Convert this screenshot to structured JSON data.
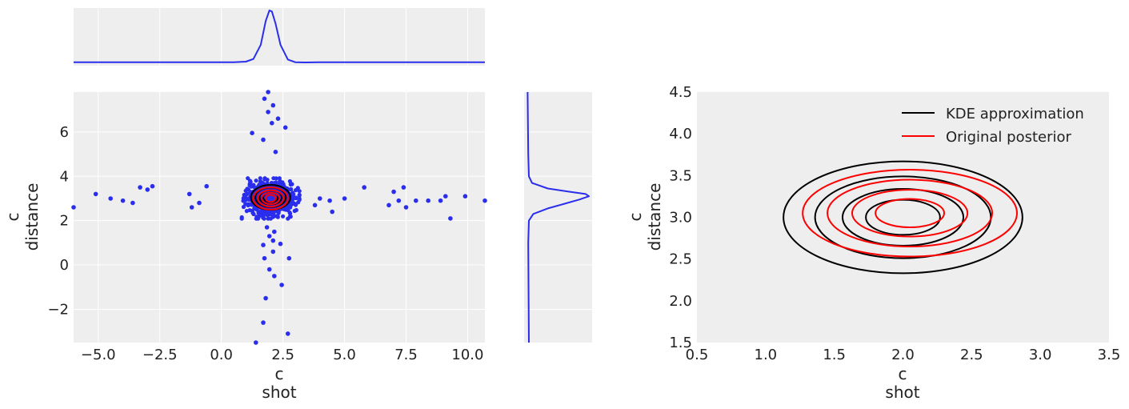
{
  "colors": {
    "background": "#eeeeee",
    "grid": "#ffffff",
    "samples": "#2a2eec",
    "kde": "#000000",
    "posterior": "#ff0000",
    "text": "#222222"
  },
  "chart_data": [
    {
      "id": "top-marginal",
      "type": "line",
      "xlim": [
        -6,
        10.7
      ],
      "x_gridlines": [
        -5.0,
        -2.5,
        0.0,
        2.5,
        5.0,
        7.5,
        10.0
      ],
      "series": [
        {
          "x": [
            -6,
            0.5,
            1.0,
            1.3,
            1.6,
            1.8,
            1.95,
            2.05,
            2.2,
            2.4,
            2.7,
            3.0,
            3.4,
            4.0,
            10.7
          ],
          "y": [
            0.02,
            0.02,
            0.03,
            0.08,
            0.35,
            0.8,
            1.0,
            0.98,
            0.75,
            0.35,
            0.07,
            0.02,
            0.015,
            0.02,
            0.02
          ]
        }
      ]
    },
    {
      "id": "joint-scatter",
      "type": "scatter",
      "xlabel": [
        "c",
        "shot"
      ],
      "ylabel": [
        "c",
        "distance"
      ],
      "xlim": [
        -6,
        10.7
      ],
      "ylim": [
        -3.5,
        7.8
      ],
      "xticks": [
        -5.0,
        -2.5,
        0.0,
        2.5,
        5.0,
        7.5,
        10.0
      ],
      "xtick_labels": [
        "−5.0",
        "−2.5",
        "0.0",
        "2.5",
        "5.0",
        "7.5",
        "10.0"
      ],
      "yticks": [
        -2,
        0,
        2,
        4,
        6
      ],
      "ytick_labels": [
        "−2",
        "0",
        "2",
        "4",
        "6"
      ],
      "points": [
        [
          -6.0,
          2.6
        ],
        [
          -5.1,
          3.2
        ],
        [
          -4.5,
          3.0
        ],
        [
          -4.0,
          2.9
        ],
        [
          -3.6,
          2.8
        ],
        [
          -3.3,
          3.5
        ],
        [
          -3.0,
          3.4
        ],
        [
          -2.8,
          3.55
        ],
        [
          -1.3,
          3.2
        ],
        [
          -1.2,
          2.6
        ],
        [
          -0.9,
          2.8
        ],
        [
          -0.6,
          3.55
        ],
        [
          3.8,
          2.7
        ],
        [
          4.0,
          3.0
        ],
        [
          4.4,
          2.9
        ],
        [
          4.5,
          2.4
        ],
        [
          5.0,
          3.0
        ],
        [
          5.8,
          3.5
        ],
        [
          6.8,
          2.7
        ],
        [
          7.0,
          3.3
        ],
        [
          7.2,
          2.9
        ],
        [
          7.4,
          3.5
        ],
        [
          7.5,
          2.6
        ],
        [
          7.9,
          2.9
        ],
        [
          8.4,
          2.9
        ],
        [
          8.9,
          2.9
        ],
        [
          9.1,
          3.1
        ],
        [
          9.3,
          2.1
        ],
        [
          9.9,
          3.1
        ],
        [
          10.7,
          2.9
        ],
        [
          1.9,
          7.8
        ],
        [
          1.75,
          7.5
        ],
        [
          2.1,
          7.2
        ],
        [
          1.9,
          6.9
        ],
        [
          2.3,
          6.6
        ],
        [
          2.05,
          6.4
        ],
        [
          2.6,
          6.2
        ],
        [
          1.25,
          5.95
        ],
        [
          1.7,
          5.65
        ],
        [
          2.2,
          5.1
        ],
        [
          1.85,
          1.7
        ],
        [
          2.15,
          1.5
        ],
        [
          1.95,
          1.3
        ],
        [
          2.1,
          1.1
        ],
        [
          2.4,
          0.95
        ],
        [
          1.7,
          0.9
        ],
        [
          2.1,
          0.6
        ],
        [
          1.75,
          0.3
        ],
        [
          2.75,
          0.3
        ],
        [
          1.95,
          -0.2
        ],
        [
          2.15,
          -0.5
        ],
        [
          2.45,
          -0.9
        ],
        [
          1.8,
          -1.5
        ],
        [
          1.7,
          -2.6
        ],
        [
          2.7,
          -3.1
        ],
        [
          1.4,
          -3.5
        ]
      ],
      "cloud": {
        "center": [
          2.0,
          3.0
        ],
        "spread": [
          0.45,
          0.35
        ],
        "count": 900
      },
      "contour_levels": [
        {
          "series": "KDE approximation",
          "center": [
            2.0,
            3.05
          ],
          "radii": [
            [
              0.8,
              0.56
            ],
            [
              0.62,
              0.44
            ],
            [
              0.45,
              0.32
            ],
            [
              0.3,
              0.22
            ]
          ]
        },
        {
          "series": "Original posterior",
          "center": [
            2.0,
            3.0
          ],
          "radii": [
            [
              0.7,
              0.5
            ],
            [
              0.52,
              0.37
            ],
            [
              0.36,
              0.26
            ],
            [
              0.2,
              0.16
            ]
          ]
        }
      ]
    },
    {
      "id": "right-marginal",
      "type": "line",
      "ylim": [
        -3.5,
        7.8
      ],
      "y_gridlines": [
        -2,
        0,
        2,
        4,
        6
      ],
      "series": [
        {
          "y": [
            -3.5,
            1.0,
            2.0,
            2.3,
            2.55,
            2.75,
            2.95,
            3.1,
            3.2,
            3.3,
            3.45,
            3.7,
            4.0,
            5.0,
            7.8
          ],
          "x": [
            0.05,
            0.04,
            0.05,
            0.12,
            0.35,
            0.6,
            0.85,
            1.0,
            0.95,
            0.7,
            0.35,
            0.1,
            0.05,
            0.04,
            0.03
          ]
        }
      ]
    },
    {
      "id": "contour-comparison",
      "type": "line",
      "xlabel": [
        "c",
        "shot"
      ],
      "ylabel": [
        "c",
        "distance"
      ],
      "xlim": [
        0.5,
        3.5
      ],
      "ylim": [
        1.5,
        4.5
      ],
      "xticks": [
        0.5,
        1.0,
        1.5,
        2.0,
        2.5,
        3.0,
        3.5
      ],
      "xtick_labels": [
        "0.5",
        "1.0",
        "1.5",
        "2.0",
        "2.5",
        "3.0",
        "3.5"
      ],
      "yticks": [
        1.5,
        2.0,
        2.5,
        3.0,
        3.5,
        4.0,
        4.5
      ],
      "ytick_labels": [
        "1.5",
        "2.0",
        "2.5",
        "3.0",
        "3.5",
        "4.0",
        "4.5"
      ],
      "legend": {
        "placement": "top-right",
        "entries": [
          "KDE approximation",
          "Original posterior"
        ]
      },
      "series": [
        {
          "name": "KDE approximation",
          "color": "#000000",
          "center": [
            2.0,
            3.0
          ],
          "ellipses": [
            [
              0.87,
              0.67
            ],
            [
              0.64,
              0.49
            ],
            [
              0.44,
              0.34
            ],
            [
              0.27,
              0.21
            ]
          ]
        },
        {
          "name": "Original posterior",
          "color": "#ff0000",
          "center": [
            2.05,
            3.05
          ],
          "ellipses": [
            [
              0.78,
              0.52
            ],
            [
              0.6,
              0.4
            ],
            [
              0.42,
              0.28
            ],
            [
              0.25,
              0.17
            ]
          ]
        }
      ]
    }
  ]
}
